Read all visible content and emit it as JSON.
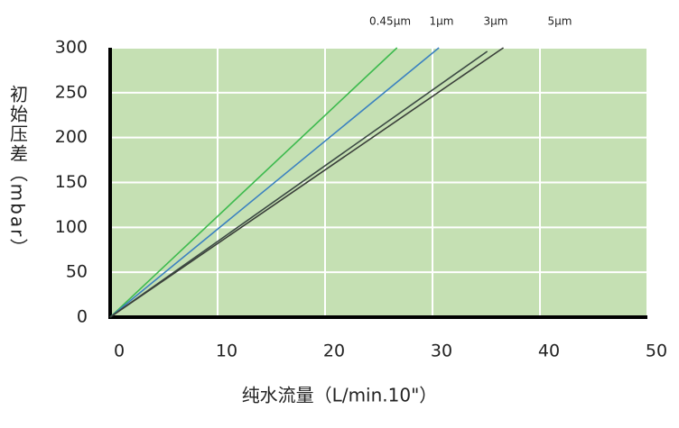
{
  "chart_data": {
    "type": "line",
    "xlabel": "纯水流量（L/min.10\"）",
    "ylabel": "初始压差（mbar）",
    "xlim": [
      0,
      50
    ],
    "ylim": [
      0,
      300
    ],
    "xticks": [
      0,
      10,
      20,
      30,
      40,
      50
    ],
    "yticks": [
      0,
      50,
      100,
      150,
      200,
      250,
      300
    ],
    "grid": true,
    "background": "#c5e0b3",
    "series": [
      {
        "name": "0.45μm",
        "color": "#3dba4e",
        "x": [
          0,
          26.7
        ],
        "values": [
          0,
          300
        ]
      },
      {
        "name": "1μm",
        "color": "#3a80c0",
        "x": [
          0,
          30.6
        ],
        "values": [
          0,
          300
        ]
      },
      {
        "name": "3μm",
        "color": "#3c4a44",
        "x": [
          0,
          35.1
        ],
        "values": [
          0,
          296
        ]
      },
      {
        "name": "5μm",
        "color": "#3a3f3a",
        "x": [
          0,
          36.6
        ],
        "values": [
          0,
          300
        ]
      }
    ]
  }
}
